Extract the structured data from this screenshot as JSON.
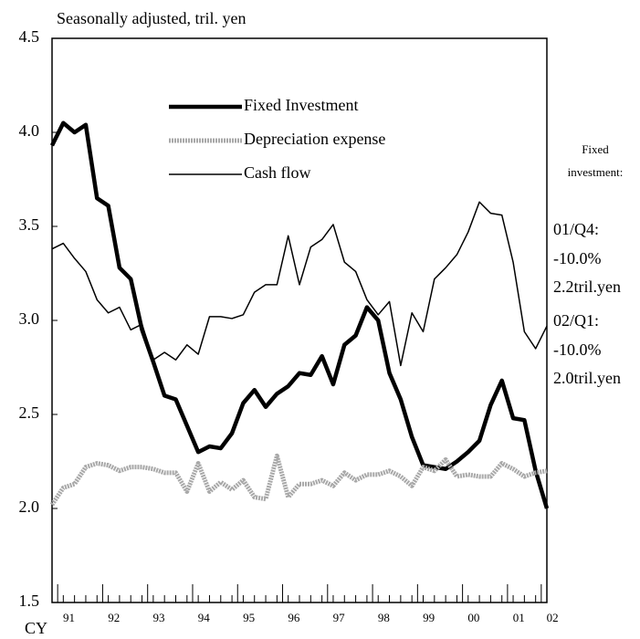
{
  "chart_data": {
    "type": "line",
    "subtitle": "Seasonally adjusted, tril. yen",
    "x_label": "CY",
    "categories": [
      null,
      "91",
      null,
      null,
      null,
      "92",
      null,
      null,
      null,
      "93",
      null,
      null,
      null,
      "94",
      null,
      null,
      null,
      "95",
      null,
      null,
      null,
      "96",
      null,
      null,
      null,
      "97",
      null,
      null,
      null,
      "98",
      null,
      null,
      null,
      "99",
      null,
      null,
      null,
      "00",
      null,
      null,
      null,
      "01",
      null,
      null,
      "02"
    ],
    "series": [
      {
        "name": "Fixed Investment",
        "color": "#000000",
        "values": [
          3.93,
          4.05,
          4.0,
          4.04,
          3.65,
          3.61,
          3.28,
          3.22,
          2.95,
          2.78,
          2.6,
          2.58,
          2.44,
          2.3,
          2.33,
          2.32,
          2.4,
          2.56,
          2.63,
          2.54,
          2.61,
          2.65,
          2.72,
          2.71,
          2.81,
          2.66,
          2.87,
          2.92,
          3.07,
          3.0,
          2.72,
          2.58,
          2.38,
          2.23,
          2.22,
          2.21,
          2.25,
          2.3,
          2.36,
          2.55,
          2.68,
          2.48,
          2.47,
          2.2,
          2.0
        ]
      },
      {
        "name": "Depreciation expense",
        "color": "#a8a8a8",
        "values": [
          2.02,
          2.11,
          2.13,
          2.22,
          2.24,
          2.23,
          2.2,
          2.22,
          2.22,
          2.21,
          2.19,
          2.19,
          2.09,
          2.24,
          2.09,
          2.14,
          2.1,
          2.15,
          2.06,
          2.05,
          2.28,
          2.06,
          2.13,
          2.13,
          2.15,
          2.12,
          2.19,
          2.15,
          2.18,
          2.18,
          2.2,
          2.17,
          2.12,
          2.22,
          2.2,
          2.26,
          2.17,
          2.18,
          2.17,
          2.17,
          2.24,
          2.21,
          2.17,
          2.19,
          2.2
        ]
      },
      {
        "name": "Cash flow",
        "color": "#000000",
        "values": [
          3.38,
          3.41,
          3.33,
          3.26,
          3.11,
          3.04,
          3.07,
          2.95,
          2.98,
          2.79,
          2.83,
          2.79,
          2.87,
          2.82,
          3.02,
          3.02,
          3.01,
          3.03,
          3.15,
          3.19,
          3.19,
          3.45,
          3.19,
          3.39,
          3.43,
          3.51,
          3.31,
          3.26,
          3.11,
          3.03,
          3.1,
          2.76,
          3.04,
          2.94,
          3.22,
          3.28,
          3.35,
          3.47,
          3.63,
          3.57,
          3.56,
          3.31,
          2.94,
          2.85,
          2.97
        ]
      }
    ],
    "ylim": [
      1.5,
      4.5
    ],
    "yticks": [
      {
        "value": 1.5,
        "label": "1.5"
      },
      {
        "value": 2.0,
        "label": "2.0"
      },
      {
        "value": 2.5,
        "label": "2.5"
      },
      {
        "value": 3.0,
        "label": "3.0"
      },
      {
        "value": 3.5,
        "label": "3.5"
      },
      {
        "value": 4.0,
        "label": "4.0"
      },
      {
        "value": 4.5,
        "label": "4.5"
      }
    ],
    "grid": false,
    "annotations": [
      "Fixed",
      "investment:",
      "01/Q4:",
      "-10.0%",
      "2.2tril.yen",
      "02/Q1:",
      "-10.0%",
      "2.0tril.yen"
    ]
  }
}
